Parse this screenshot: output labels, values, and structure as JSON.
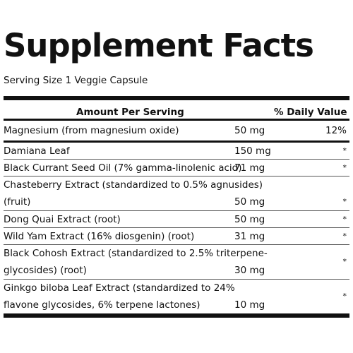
{
  "title": "Supplement Facts",
  "serving_size": "Serving Size 1 Veggie Capsule",
  "header": {
    "amount_per_serving": "Amount Per Serving",
    "daily_value": "% Daily Value"
  },
  "rows": [
    {
      "name_line1": "Magnesium (from magnesium oxide)",
      "name_line2": "",
      "amount": "50 mg",
      "dv": "12%"
    },
    {
      "name_line1": "Damiana Leaf",
      "name_line2": "",
      "amount": "150 mg",
      "dv": "*"
    },
    {
      "name_line1": "Black Currant Seed Oil (7% gamma-linolenic acid)",
      "name_line2": "",
      "amount": "71 mg",
      "dv": "*"
    },
    {
      "name_line1": "Chasteberry Extract (standardized to 0.5% agnusides)",
      "name_line2": "(fruit)",
      "amount": "50 mg",
      "dv": "*"
    },
    {
      "name_line1": "Dong Quai Extract (root)",
      "name_line2": "",
      "amount": "50 mg",
      "dv": "*"
    },
    {
      "name_line1": "Wild Yam Extract (16% diosgenin) (root)",
      "name_line2": "",
      "amount": "31 mg",
      "dv": "*"
    },
    {
      "name_line1": "Black Cohosh Extract (standardized to 2.5% triterpene-",
      "name_line2": "glycosides) (root)",
      "amount": "30 mg",
      "dv": "*"
    },
    {
      "name_line1": "Ginkgo biloba Leaf Extract (standardized to 24%",
      "name_line2": "flavone glycosides, 6% terpene lactones)",
      "amount": "10 mg",
      "dv": "*"
    }
  ]
}
